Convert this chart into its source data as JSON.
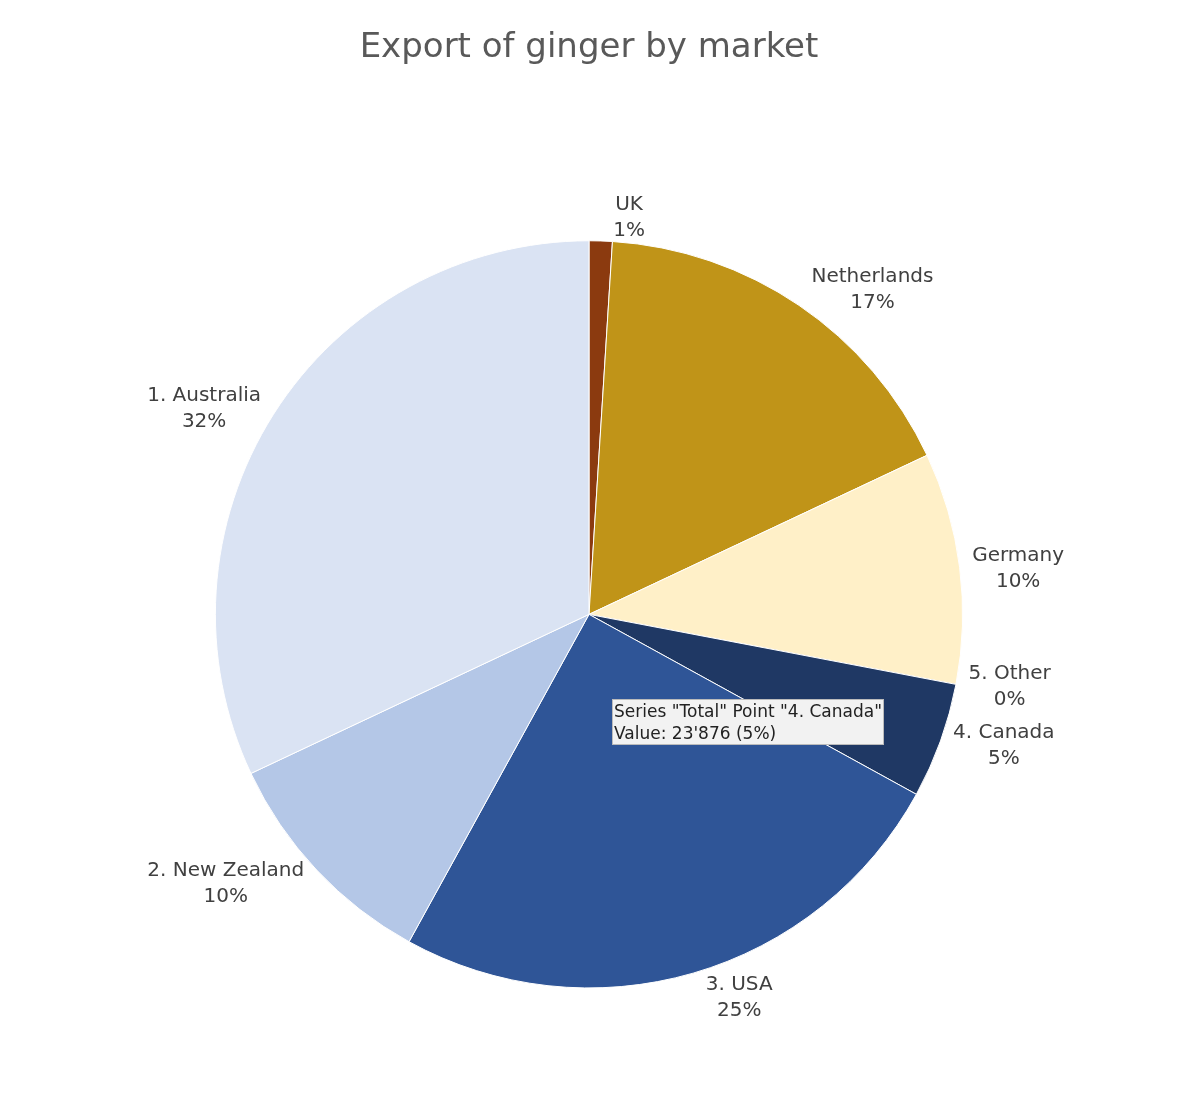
{
  "chart_data": {
    "type": "pie",
    "title": "Export of ginger by market",
    "categories": [
      "UK",
      "Netherlands",
      "Germany",
      "5. Other",
      "4. Canada",
      "3. USA",
      "2. New Zealand",
      "1. Australia"
    ],
    "values": [
      1,
      17,
      10,
      0,
      5,
      25,
      10,
      32
    ],
    "value_labels": [
      "1%",
      "17%",
      "10%",
      "0%",
      "5%",
      "25%",
      "10%",
      "32%"
    ],
    "colors": [
      "#8b3a0f",
      "#c09418",
      "#fff0c8",
      "#000000",
      "#1f3864",
      "#2f5597",
      "#b4c7e7",
      "#dae3f3"
    ],
    "annotations": [
      "Series \"Total\" Point \"4. Canada\"\nValue: 23'876 (5%)"
    ],
    "legend": false
  }
}
